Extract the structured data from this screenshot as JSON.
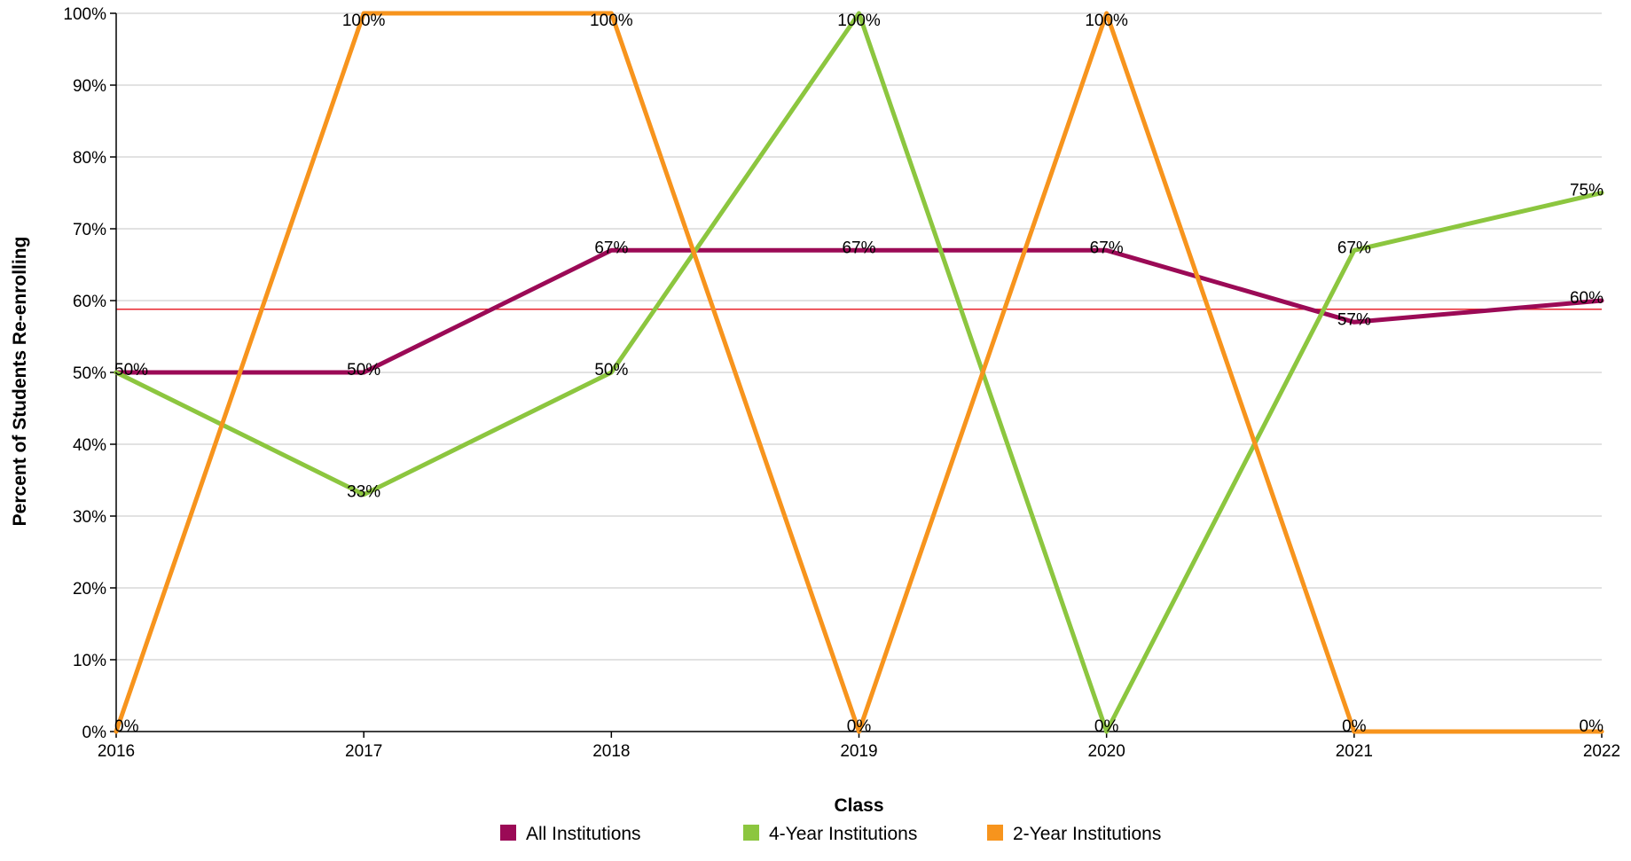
{
  "chart_data": {
    "type": "line",
    "title": "",
    "xlabel": "Class",
    "ylabel": "Percent of Students Re-enrolling",
    "categories": [
      "2016",
      "2017",
      "2018",
      "2019",
      "2020",
      "2021",
      "2022"
    ],
    "y_ticks": [
      "0%",
      "10%",
      "20%",
      "30%",
      "40%",
      "50%",
      "60%",
      "70%",
      "80%",
      "90%",
      "100%"
    ],
    "ylim": [
      0,
      100
    ],
    "grid": true,
    "legend_position": "bottom",
    "reference_line": {
      "value": 58.8,
      "color": "#e8262e"
    },
    "series": [
      {
        "name": "All Institutions",
        "color": "#9b0a56",
        "values": [
          50,
          50,
          67,
          67,
          67,
          57,
          60
        ],
        "labels": [
          "50%",
          "50%",
          "67%",
          "67%",
          "67%",
          "57%",
          "60%"
        ]
      },
      {
        "name": "4-Year Institutions",
        "color": "#8cc63f",
        "values": [
          50,
          33,
          50,
          100,
          0,
          67,
          75
        ],
        "labels": [
          "",
          "33%",
          "50%",
          "100%",
          "0%",
          "67%",
          "75%"
        ]
      },
      {
        "name": "2-Year Institutions",
        "color": "#f7941d",
        "values": [
          0,
          100,
          100,
          0,
          100,
          0,
          0
        ],
        "labels": [
          "0%",
          "100%",
          "100%",
          "0%",
          "100%",
          "0%",
          "0%"
        ]
      }
    ]
  }
}
